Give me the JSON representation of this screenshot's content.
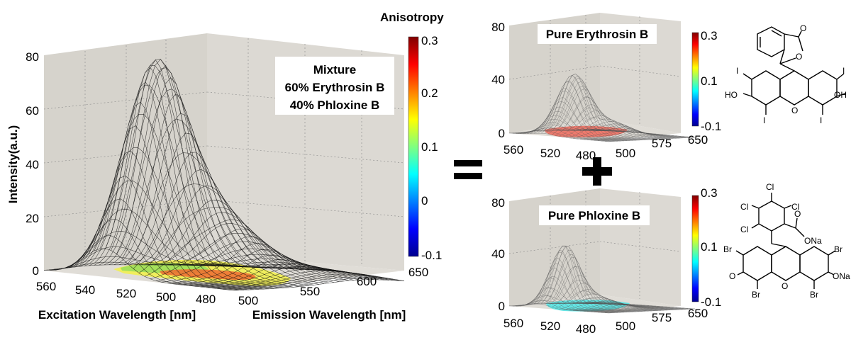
{
  "colors": {
    "plane": "#d6d3cc",
    "plane_side": "#e2dfd9",
    "mesh": "#111111",
    "box_fill": "#ffffff"
  },
  "chart_data": [
    {
      "type": "surface",
      "title": "",
      "annotation": [
        "Mixture",
        "60% Erythrosin B",
        "40% Phloxine B"
      ],
      "colorbar": {
        "label": "Anisotropy",
        "range": [
          -0.1,
          0.3
        ],
        "ticks": [
          "0.3",
          "0.2",
          "0.1",
          "0",
          "-0.1"
        ]
      },
      "zlabel": "Intensity(a.u.)",
      "xlabel": "Excitation Wavelength [nm]",
      "ylabel": "Emission Wavelength [nm]",
      "z_ticks": [
        "0",
        "20",
        "40",
        "60",
        "80"
      ],
      "x_ticks": [
        "560",
        "540",
        "520",
        "500",
        "480"
      ],
      "y_ticks": [
        "500",
        "550",
        "600",
        "650"
      ],
      "peak": {
        "excitation": 530,
        "emission": 550,
        "intensity": 78
      },
      "anisotropy_range": [
        0.15,
        0.25
      ]
    },
    {
      "type": "surface",
      "title": "Pure Erythrosin B",
      "colorbar": {
        "range": [
          -0.1,
          0.3
        ],
        "ticks": [
          "0.3",
          "0.1",
          "-0.1"
        ]
      },
      "z_ticks": [
        "0",
        "40",
        "80"
      ],
      "x_ticks": [
        "560",
        "520",
        "480"
      ],
      "y_ticks": [
        "500",
        "575",
        "650"
      ],
      "peak": {
        "excitation": 530,
        "emission": 555,
        "intensity": 45
      },
      "anisotropy": 0.25
    },
    {
      "type": "surface",
      "title": "Pure Phloxine B",
      "colorbar": {
        "range": [
          -0.1,
          0.3
        ],
        "ticks": [
          "0.3",
          "0.1",
          "-0.1"
        ]
      },
      "z_ticks": [
        "0",
        "40",
        "80"
      ],
      "x_ticks": [
        "560",
        "520",
        "480"
      ],
      "y_ticks": [
        "500",
        "575",
        "650"
      ],
      "peak": {
        "excitation": 540,
        "emission": 560,
        "intensity": 47
      },
      "anisotropy": 0.1
    }
  ],
  "operators": {
    "equals": "=",
    "plus": "+"
  },
  "molecules": {
    "erythrosin": {
      "atoms": [
        "O",
        "O",
        "I",
        "I",
        "I",
        "I",
        "HO",
        "OH",
        "O"
      ]
    },
    "phloxine": {
      "atoms": [
        "Cl",
        "Cl",
        "Cl",
        "Cl",
        "O",
        "ONa",
        "Br",
        "Br",
        "Br",
        "Br",
        "O",
        "ONa",
        "O"
      ]
    }
  }
}
